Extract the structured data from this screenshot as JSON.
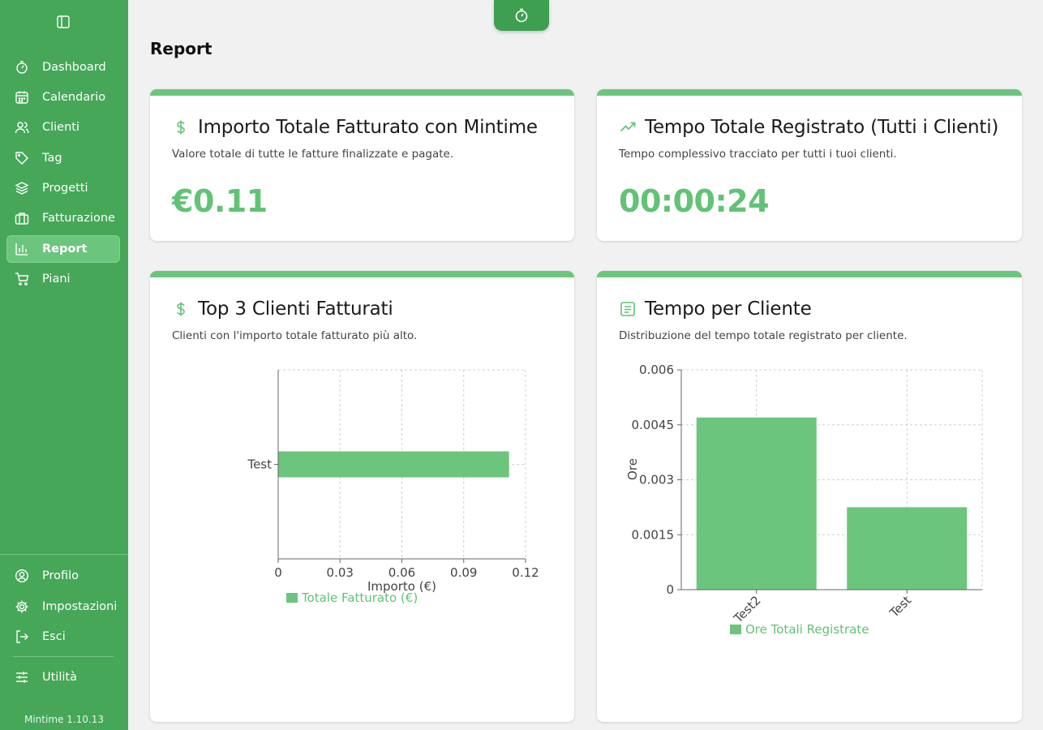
{
  "sidebar": {
    "items": [
      {
        "label": "Dashboard",
        "icon": "timer-icon"
      },
      {
        "label": "Calendario",
        "icon": "calendar-icon"
      },
      {
        "label": "Clienti",
        "icon": "users-icon"
      },
      {
        "label": "Tag",
        "icon": "tag-icon"
      },
      {
        "label": "Progetti",
        "icon": "layers-icon"
      },
      {
        "label": "Fatturazione",
        "icon": "briefcase-icon"
      },
      {
        "label": "Report",
        "icon": "bar-chart-icon",
        "active": true
      },
      {
        "label": "Piani",
        "icon": "cart-icon"
      }
    ],
    "bottom": [
      {
        "label": "Profilo",
        "icon": "user-circle-icon"
      },
      {
        "label": "Impostazioni",
        "icon": "gear-icon"
      },
      {
        "label": "Esci",
        "icon": "logout-icon"
      }
    ],
    "utility": {
      "label": "Utilità",
      "icon": "sliders-icon"
    },
    "version": "Mintime 1.10.13"
  },
  "page": {
    "title": "Report"
  },
  "cards": {
    "billed_total": {
      "title": "Importo Totale Fatturato con Mintime",
      "description": "Valore totale di tutte le fatture finalizzate e pagate.",
      "value": "€0.11"
    },
    "time_total": {
      "title": "Tempo Totale Registrato (Tutti i Clienti)",
      "description": "Tempo complessivo tracciato per tutti i tuoi clienti.",
      "value": "00:00:24"
    },
    "top_clients": {
      "title": "Top 3 Clienti Fatturati",
      "description": "Clienti con l'importo totale fatturato più alto."
    },
    "time_per_client": {
      "title": "Tempo per Cliente",
      "description": "Distribuzione del tempo totale registrato per cliente."
    }
  },
  "colors": {
    "brand": "#46a758",
    "accent": "#62c275",
    "bar": "#6cc57c"
  },
  "chart_data": [
    {
      "type": "bar",
      "orientation": "horizontal",
      "categories": [
        "Test"
      ],
      "series": [
        {
          "name": "Totale Fatturato (€)",
          "values": [
            0.112
          ]
        }
      ],
      "xlabel": "Importo (€)",
      "ylabel": "",
      "xlim": [
        0,
        0.12
      ],
      "ticks": [
        "0",
        "0.03",
        "0.06",
        "0.09",
        "0.12"
      ],
      "grid": true,
      "legend": "bottom"
    },
    {
      "type": "bar",
      "orientation": "vertical",
      "categories": [
        "Test2",
        "Test"
      ],
      "series": [
        {
          "name": "Ore Totali Registrate",
          "values": [
            0.0047,
            0.00225
          ]
        }
      ],
      "xlabel": "",
      "ylabel": "Ore",
      "ylim": [
        0,
        0.006
      ],
      "ticks": [
        "0",
        "0.0015",
        "0.003",
        "0.0045",
        "0.006"
      ],
      "grid": true,
      "legend": "bottom"
    }
  ]
}
